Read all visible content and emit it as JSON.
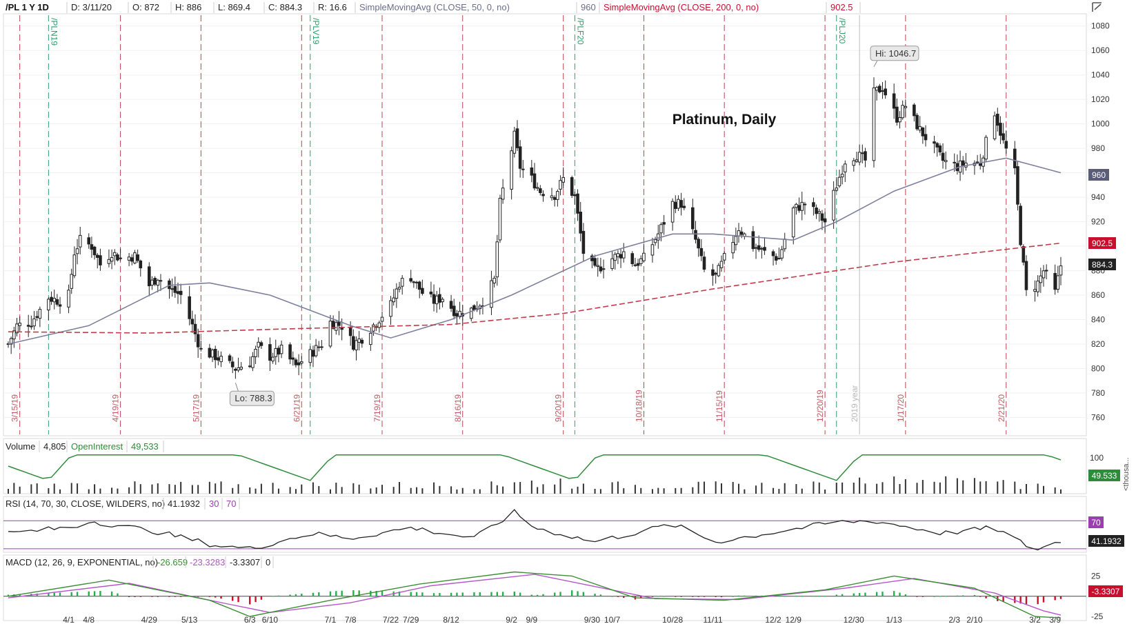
{
  "header": {
    "symbol": "/PL 1 Y 1D",
    "date": "D: 3/11/20",
    "open": "O: 872",
    "high": "H: 886",
    "low": "L: 869.4",
    "close": "C: 884.3",
    "range": "R: 16.6",
    "sma50_label": "SimpleMovingAvg (CLOSE, 50, 0, no)",
    "sma50_value": "960",
    "sma200_label": "SimpleMovingAvg (CLOSE, 200, 0, no)",
    "sma200_value": "902.5"
  },
  "chart_data": {
    "type": "candlestick",
    "title": "Platinum, Daily",
    "price_axis": {
      "ylim": [
        745,
        1090
      ],
      "ticks": [
        760,
        780,
        800,
        820,
        840,
        860,
        880,
        900,
        920,
        940,
        960,
        980,
        1000,
        1020,
        1040,
        1060,
        1080
      ]
    },
    "x_axis": {
      "date_range": [
        "2019-03-11",
        "2020-03-11"
      ],
      "ticks": [
        {
          "date": "2019-04-01",
          "label": "4/1"
        },
        {
          "date": "2019-04-08",
          "label": "4/8"
        },
        {
          "date": "2019-04-29",
          "label": "4/29"
        },
        {
          "date": "2019-05-13",
          "label": "5/13"
        },
        {
          "date": "2019-06-03",
          "label": "6/3"
        },
        {
          "date": "2019-06-10",
          "label": "6/10"
        },
        {
          "date": "2019-07-01",
          "label": "7/1"
        },
        {
          "date": "2019-07-08",
          "label": "7/8"
        },
        {
          "date": "2019-07-22",
          "label": "7/22"
        },
        {
          "date": "2019-07-29",
          "label": "7/29"
        },
        {
          "date": "2019-08-12",
          "label": "8/12"
        },
        {
          "date": "2019-09-02",
          "label": "9/2"
        },
        {
          "date": "2019-09-09",
          "label": "9/9"
        },
        {
          "date": "2019-09-30",
          "label": "9/30"
        },
        {
          "date": "2019-10-07",
          "label": "10/7"
        },
        {
          "date": "2019-10-28",
          "label": "10/28"
        },
        {
          "date": "2019-11-11",
          "label": "11/11"
        },
        {
          "date": "2019-12-02",
          "label": "12/2"
        },
        {
          "date": "2019-12-09",
          "label": "12/9"
        },
        {
          "date": "2019-12-30",
          "label": "12/30"
        },
        {
          "date": "2020-01-13",
          "label": "1/13"
        },
        {
          "date": "2020-02-03",
          "label": "2/3"
        },
        {
          "date": "2020-02-10",
          "label": "2/10"
        },
        {
          "date": "2020-03-02",
          "label": "3/2"
        },
        {
          "date": "2020-03-09",
          "label": "3/9"
        }
      ]
    },
    "expiration_markers": [
      {
        "date": "2019-03-15",
        "label": "3/15/19"
      },
      {
        "date": "2019-04-19",
        "label": "4/19/19"
      },
      {
        "date": "2019-05-17",
        "label": "5/17/19"
      },
      {
        "date": "2019-06-21",
        "label": "6/21/19"
      },
      {
        "date": "2019-07-19",
        "label": "7/19/19"
      },
      {
        "date": "2019-08-16",
        "label": "8/16/19"
      },
      {
        "date": "2019-09-20",
        "label": "9/20/19"
      },
      {
        "date": "2019-10-18",
        "label": "10/18/19"
      },
      {
        "date": "2019-11-15",
        "label": "11/15/19"
      },
      {
        "date": "2019-12-20",
        "label": "12/20/19"
      },
      {
        "date": "2020-01-17",
        "label": "1/17/20"
      },
      {
        "date": "2020-02-21",
        "label": "2/21/20"
      }
    ],
    "rollover_markers": [
      {
        "date": "2019-03-25",
        "label": "/PLN19"
      },
      {
        "date": "2019-06-24",
        "label": "/PLV19"
      },
      {
        "date": "2019-09-24",
        "label": "/PLF20"
      },
      {
        "date": "2019-12-24",
        "label": "/PLJ20"
      }
    ],
    "year_marker": {
      "date": "2020-01-01",
      "label": "2019 year"
    },
    "high_annotation": {
      "date": "2020-01-06",
      "value": 1046.7,
      "label": "Hi: 1046.7"
    },
    "low_annotation": {
      "date": "2019-05-29",
      "value": 788.3,
      "label": "Lo: 788.3"
    },
    "close_points": [
      [
        "2019-03-11",
        820
      ],
      [
        "2019-03-14",
        835
      ],
      [
        "2019-03-19",
        838
      ],
      [
        "2019-03-25",
        858
      ],
      [
        "2019-03-29",
        855
      ],
      [
        "2019-04-01",
        860
      ],
      [
        "2019-04-03",
        895
      ],
      [
        "2019-04-05",
        905
      ],
      [
        "2019-04-09",
        900
      ],
      [
        "2019-04-12",
        885
      ],
      [
        "2019-04-16",
        895
      ],
      [
        "2019-04-19",
        890
      ],
      [
        "2019-04-24",
        892
      ],
      [
        "2019-04-29",
        868
      ],
      [
        "2019-05-02",
        875
      ],
      [
        "2019-05-06",
        865
      ],
      [
        "2019-05-10",
        860
      ],
      [
        "2019-05-14",
        835
      ],
      [
        "2019-05-17",
        815
      ],
      [
        "2019-05-22",
        810
      ],
      [
        "2019-05-29",
        800
      ],
      [
        "2019-06-03",
        805
      ],
      [
        "2019-06-06",
        818
      ],
      [
        "2019-06-10",
        810
      ],
      [
        "2019-06-14",
        815
      ],
      [
        "2019-06-19",
        802
      ],
      [
        "2019-06-24",
        812
      ],
      [
        "2019-06-28",
        820
      ],
      [
        "2019-07-01",
        838
      ],
      [
        "2019-07-05",
        835
      ],
      [
        "2019-07-09",
        820
      ],
      [
        "2019-07-12",
        825
      ],
      [
        "2019-07-17",
        838
      ],
      [
        "2019-07-22",
        852
      ],
      [
        "2019-07-25",
        870
      ],
      [
        "2019-07-29",
        875
      ],
      [
        "2019-08-02",
        862
      ],
      [
        "2019-08-06",
        855
      ],
      [
        "2019-08-09",
        858
      ],
      [
        "2019-08-14",
        845
      ],
      [
        "2019-08-19",
        848
      ],
      [
        "2019-08-23",
        855
      ],
      [
        "2019-08-27",
        872
      ],
      [
        "2019-08-29",
        935
      ],
      [
        "2019-09-03",
        990
      ],
      [
        "2019-09-05",
        965
      ],
      [
        "2019-09-09",
        955
      ],
      [
        "2019-09-12",
        945
      ],
      [
        "2019-09-17",
        942
      ],
      [
        "2019-09-20",
        955
      ],
      [
        "2019-09-24",
        940
      ],
      [
        "2019-09-27",
        895
      ],
      [
        "2019-10-01",
        880
      ],
      [
        "2019-10-07",
        890
      ],
      [
        "2019-10-11",
        895
      ],
      [
        "2019-10-15",
        885
      ],
      [
        "2019-10-18",
        890
      ],
      [
        "2019-10-23",
        910
      ],
      [
        "2019-10-28",
        935
      ],
      [
        "2019-10-31",
        935
      ],
      [
        "2019-11-05",
        905
      ],
      [
        "2019-11-08",
        880
      ],
      [
        "2019-11-12",
        875
      ],
      [
        "2019-11-15",
        890
      ],
      [
        "2019-11-20",
        915
      ],
      [
        "2019-11-25",
        900
      ],
      [
        "2019-11-29",
        895
      ],
      [
        "2019-12-04",
        890
      ],
      [
        "2019-12-09",
        930
      ],
      [
        "2019-12-13",
        935
      ],
      [
        "2019-12-18",
        925
      ],
      [
        "2019-12-20",
        920
      ],
      [
        "2019-12-24",
        950
      ],
      [
        "2019-12-27",
        970
      ],
      [
        "2019-12-31",
        975
      ],
      [
        "2020-01-03",
        970
      ],
      [
        "2020-01-06",
        1025
      ],
      [
        "2020-01-09",
        1030
      ],
      [
        "2020-01-14",
        1005
      ],
      [
        "2020-01-17",
        1015
      ],
      [
        "2020-01-22",
        995
      ],
      [
        "2020-01-27",
        980
      ],
      [
        "2020-01-30",
        970
      ],
      [
        "2020-02-04",
        965
      ],
      [
        "2020-02-07",
        968
      ],
      [
        "2020-02-12",
        968
      ],
      [
        "2020-02-17",
        1010
      ],
      [
        "2020-02-20",
        985
      ],
      [
        "2020-02-24",
        960
      ],
      [
        "2020-02-26",
        905
      ],
      [
        "2020-02-28",
        862
      ],
      [
        "2020-03-03",
        870
      ],
      [
        "2020-03-05",
        880
      ],
      [
        "2020-03-09",
        862
      ],
      [
        "2020-03-11",
        884.3
      ]
    ],
    "sma50_points": [
      [
        "2019-03-11",
        820
      ],
      [
        "2019-04-08",
        835
      ],
      [
        "2019-05-06",
        868
      ],
      [
        "2019-05-20",
        870
      ],
      [
        "2019-06-10",
        860
      ],
      [
        "2019-07-08",
        835
      ],
      [
        "2019-07-22",
        825
      ],
      [
        "2019-08-12",
        840
      ],
      [
        "2019-09-02",
        860
      ],
      [
        "2019-10-01",
        892
      ],
      [
        "2019-10-28",
        910
      ],
      [
        "2019-11-11",
        910
      ],
      [
        "2019-12-09",
        905
      ],
      [
        "2019-12-24",
        920
      ],
      [
        "2020-01-13",
        945
      ],
      [
        "2020-02-05",
        965
      ],
      [
        "2020-02-21",
        972
      ],
      [
        "2020-03-11",
        960
      ]
    ],
    "sma200_points": [
      [
        "2019-03-11",
        830
      ],
      [
        "2019-04-29",
        829
      ],
      [
        "2019-06-10",
        832
      ],
      [
        "2019-08-12",
        836
      ],
      [
        "2019-09-20",
        845
      ],
      [
        "2019-11-11",
        865
      ],
      [
        "2020-01-13",
        887
      ],
      [
        "2020-03-11",
        902.5
      ]
    ],
    "volume_panel": {
      "label": "Volume",
      "volume_value": "4,805",
      "oi_label": "OpenInterest",
      "oi_value": "49,533",
      "axis_tick": "100",
      "axis_unit": "<thousa...",
      "oi_badge": "49.533"
    },
    "rsi_panel": {
      "label": "RSI (14, 70, 30, CLOSE, WILDERS, no)",
      "value": "41.1932",
      "oversold": "30",
      "overbought": "70",
      "ylim": [
        25,
        85
      ],
      "levels": [
        30,
        70
      ],
      "badge_70": "70",
      "badge_value": "41.1932",
      "points": [
        [
          "2019-03-11",
          52
        ],
        [
          "2019-04-05",
          62
        ],
        [
          "2019-04-08",
          70
        ],
        [
          "2019-05-01",
          55
        ],
        [
          "2019-05-22",
          35
        ],
        [
          "2019-06-03",
          30
        ],
        [
          "2019-06-24",
          52
        ],
        [
          "2019-07-08",
          45
        ],
        [
          "2019-07-29",
          60
        ],
        [
          "2019-08-20",
          45
        ],
        [
          "2019-09-03",
          82
        ],
        [
          "2019-09-10",
          60
        ],
        [
          "2019-10-01",
          40
        ],
        [
          "2019-10-28",
          65
        ],
        [
          "2019-11-12",
          40
        ],
        [
          "2019-12-24",
          68
        ],
        [
          "2020-01-06",
          70
        ],
        [
          "2020-01-30",
          52
        ],
        [
          "2020-02-17",
          60
        ],
        [
          "2020-03-02",
          28
        ],
        [
          "2020-03-11",
          41.2
        ]
      ]
    },
    "macd_panel": {
      "label": "MACD (12, 26, 9, EXPONENTIAL, no)",
      "macd_value": "-26.659",
      "avg_value": "-23.3283",
      "diff_value": "-3.3307",
      "zero_value": "0",
      "ylim": [
        -30,
        33
      ],
      "ticks": [
        25,
        -25
      ],
      "badge": "-3.3307",
      "macd_points": [
        [
          "2019-03-11",
          0
        ],
        [
          "2019-04-15",
          20
        ],
        [
          "2019-05-20",
          -5
        ],
        [
          "2019-06-03",
          -25
        ],
        [
          "2019-07-01",
          -5
        ],
        [
          "2019-08-01",
          15
        ],
        [
          "2019-09-03",
          30
        ],
        [
          "2019-09-23",
          25
        ],
        [
          "2019-10-15",
          -2
        ],
        [
          "2019-11-15",
          -5
        ],
        [
          "2019-12-20",
          8
        ],
        [
          "2020-01-13",
          25
        ],
        [
          "2020-02-10",
          10
        ],
        [
          "2020-03-02",
          -25
        ],
        [
          "2020-03-11",
          -26.7
        ]
      ],
      "avg_points": [
        [
          "2019-03-11",
          -2
        ],
        [
          "2019-04-22",
          16
        ],
        [
          "2019-05-27",
          -10
        ],
        [
          "2019-06-10",
          -20
        ],
        [
          "2019-07-08",
          -8
        ],
        [
          "2019-08-05",
          13
        ],
        [
          "2019-09-10",
          27
        ],
        [
          "2019-10-01",
          12
        ],
        [
          "2019-10-22",
          -3
        ],
        [
          "2019-11-20",
          -4
        ],
        [
          "2019-12-27",
          10
        ],
        [
          "2020-01-20",
          22
        ],
        [
          "2020-02-17",
          4
        ],
        [
          "2020-03-05",
          -18
        ],
        [
          "2020-03-11",
          -23.3
        ]
      ]
    }
  }
}
